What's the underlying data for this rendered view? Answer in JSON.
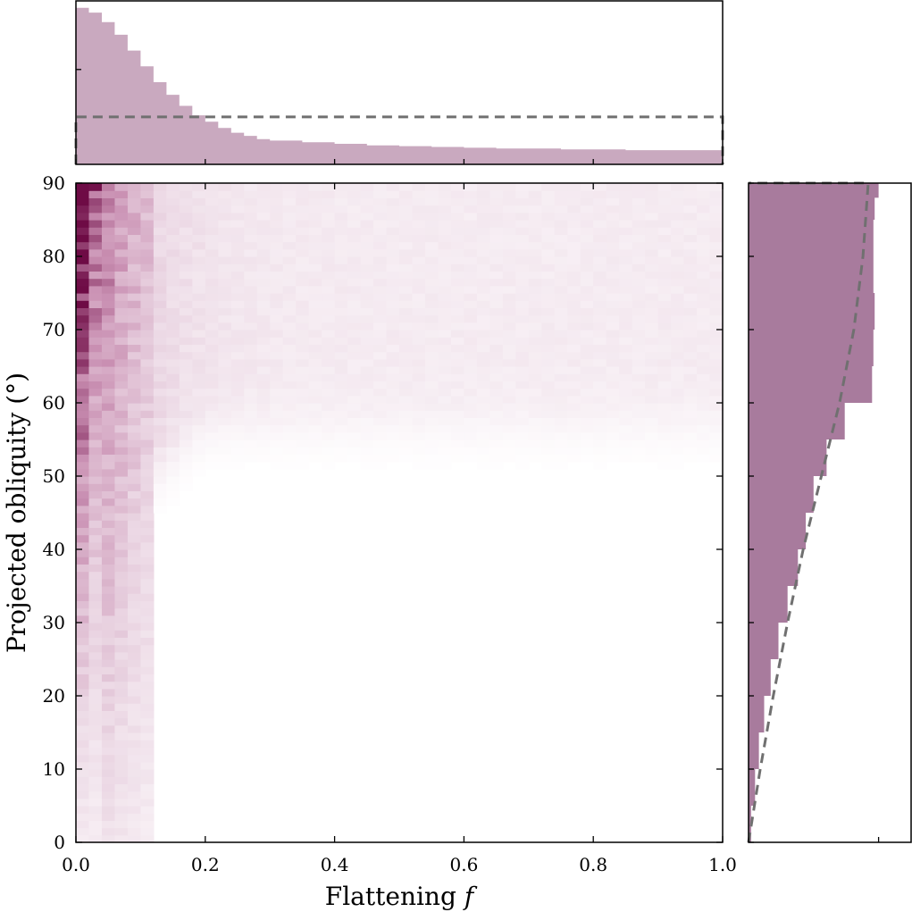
{
  "chart_data": [
    {
      "panel": "main",
      "type": "heatmap",
      "xlabel": "Flattening",
      "xlabel_var": "f",
      "ylabel": "Projected obliquity (°)",
      "xlim": [
        0.0,
        1.0
      ],
      "ylim": [
        0,
        90
      ],
      "x_ticks": [
        "0.0",
        "0.2",
        "0.4",
        "0.6",
        "0.8",
        "1.0"
      ],
      "y_ticks": [
        "0",
        "10",
        "20",
        "30",
        "40",
        "50",
        "60",
        "70",
        "80",
        "90"
      ],
      "x_bins": 50,
      "y_bins": 90,
      "colormap": [
        "#ffffff",
        "#e9d3e1",
        "#c98fb2",
        "#6e0b45"
      ],
      "description_of_density": "counts concentrated at small f for all obliquities; for larger f counts limited to obliquity above roughly 30 + 60*sqrt(f) degrees, plateau above ~57 degrees"
    },
    {
      "panel": "top-marginal",
      "type": "area",
      "orientation": "vertical",
      "color": "#c9a9bf",
      "x": [
        0.0,
        0.02,
        0.04,
        0.06,
        0.08,
        0.1,
        0.12,
        0.14,
        0.16,
        0.18,
        0.2,
        0.22,
        0.24,
        0.26,
        0.28,
        0.3,
        0.35,
        0.4,
        0.45,
        0.5,
        0.55,
        0.6,
        0.65,
        0.7,
        0.75,
        0.8,
        0.85,
        0.9,
        0.95,
        1.0
      ],
      "values": [
        0.99,
        0.96,
        0.9,
        0.82,
        0.72,
        0.62,
        0.52,
        0.44,
        0.37,
        0.31,
        0.27,
        0.23,
        0.2,
        0.18,
        0.16,
        0.15,
        0.14,
        0.13,
        0.12,
        0.115,
        0.11,
        0.105,
        0.1,
        0.1,
        0.095,
        0.095,
        0.09,
        0.09,
        0.09,
        0.09
      ],
      "reference_dashed": 0.3,
      "ylim": [
        0,
        1.0
      ]
    },
    {
      "panel": "right-marginal",
      "type": "area",
      "orientation": "horizontal",
      "color": "#a87b9d",
      "y": [
        0,
        5,
        10,
        15,
        20,
        25,
        30,
        35,
        40,
        45,
        50,
        55,
        60,
        65,
        70,
        75,
        80,
        85,
        88,
        90
      ],
      "values": [
        0.02,
        0.05,
        0.08,
        0.12,
        0.17,
        0.23,
        0.3,
        0.38,
        0.44,
        0.5,
        0.6,
        0.74,
        0.95,
        0.96,
        0.97,
        0.96,
        0.96,
        0.97,
        1.0,
        0.98
      ],
      "reference_dashed_y": [
        0,
        10,
        20,
        30,
        40,
        50,
        60,
        70,
        80,
        90
      ],
      "reference_dashed_values": [
        0.0,
        0.09,
        0.19,
        0.3,
        0.42,
        0.56,
        0.7,
        0.81,
        0.88,
        0.92
      ],
      "xlim": [
        0,
        1.25
      ]
    }
  ]
}
